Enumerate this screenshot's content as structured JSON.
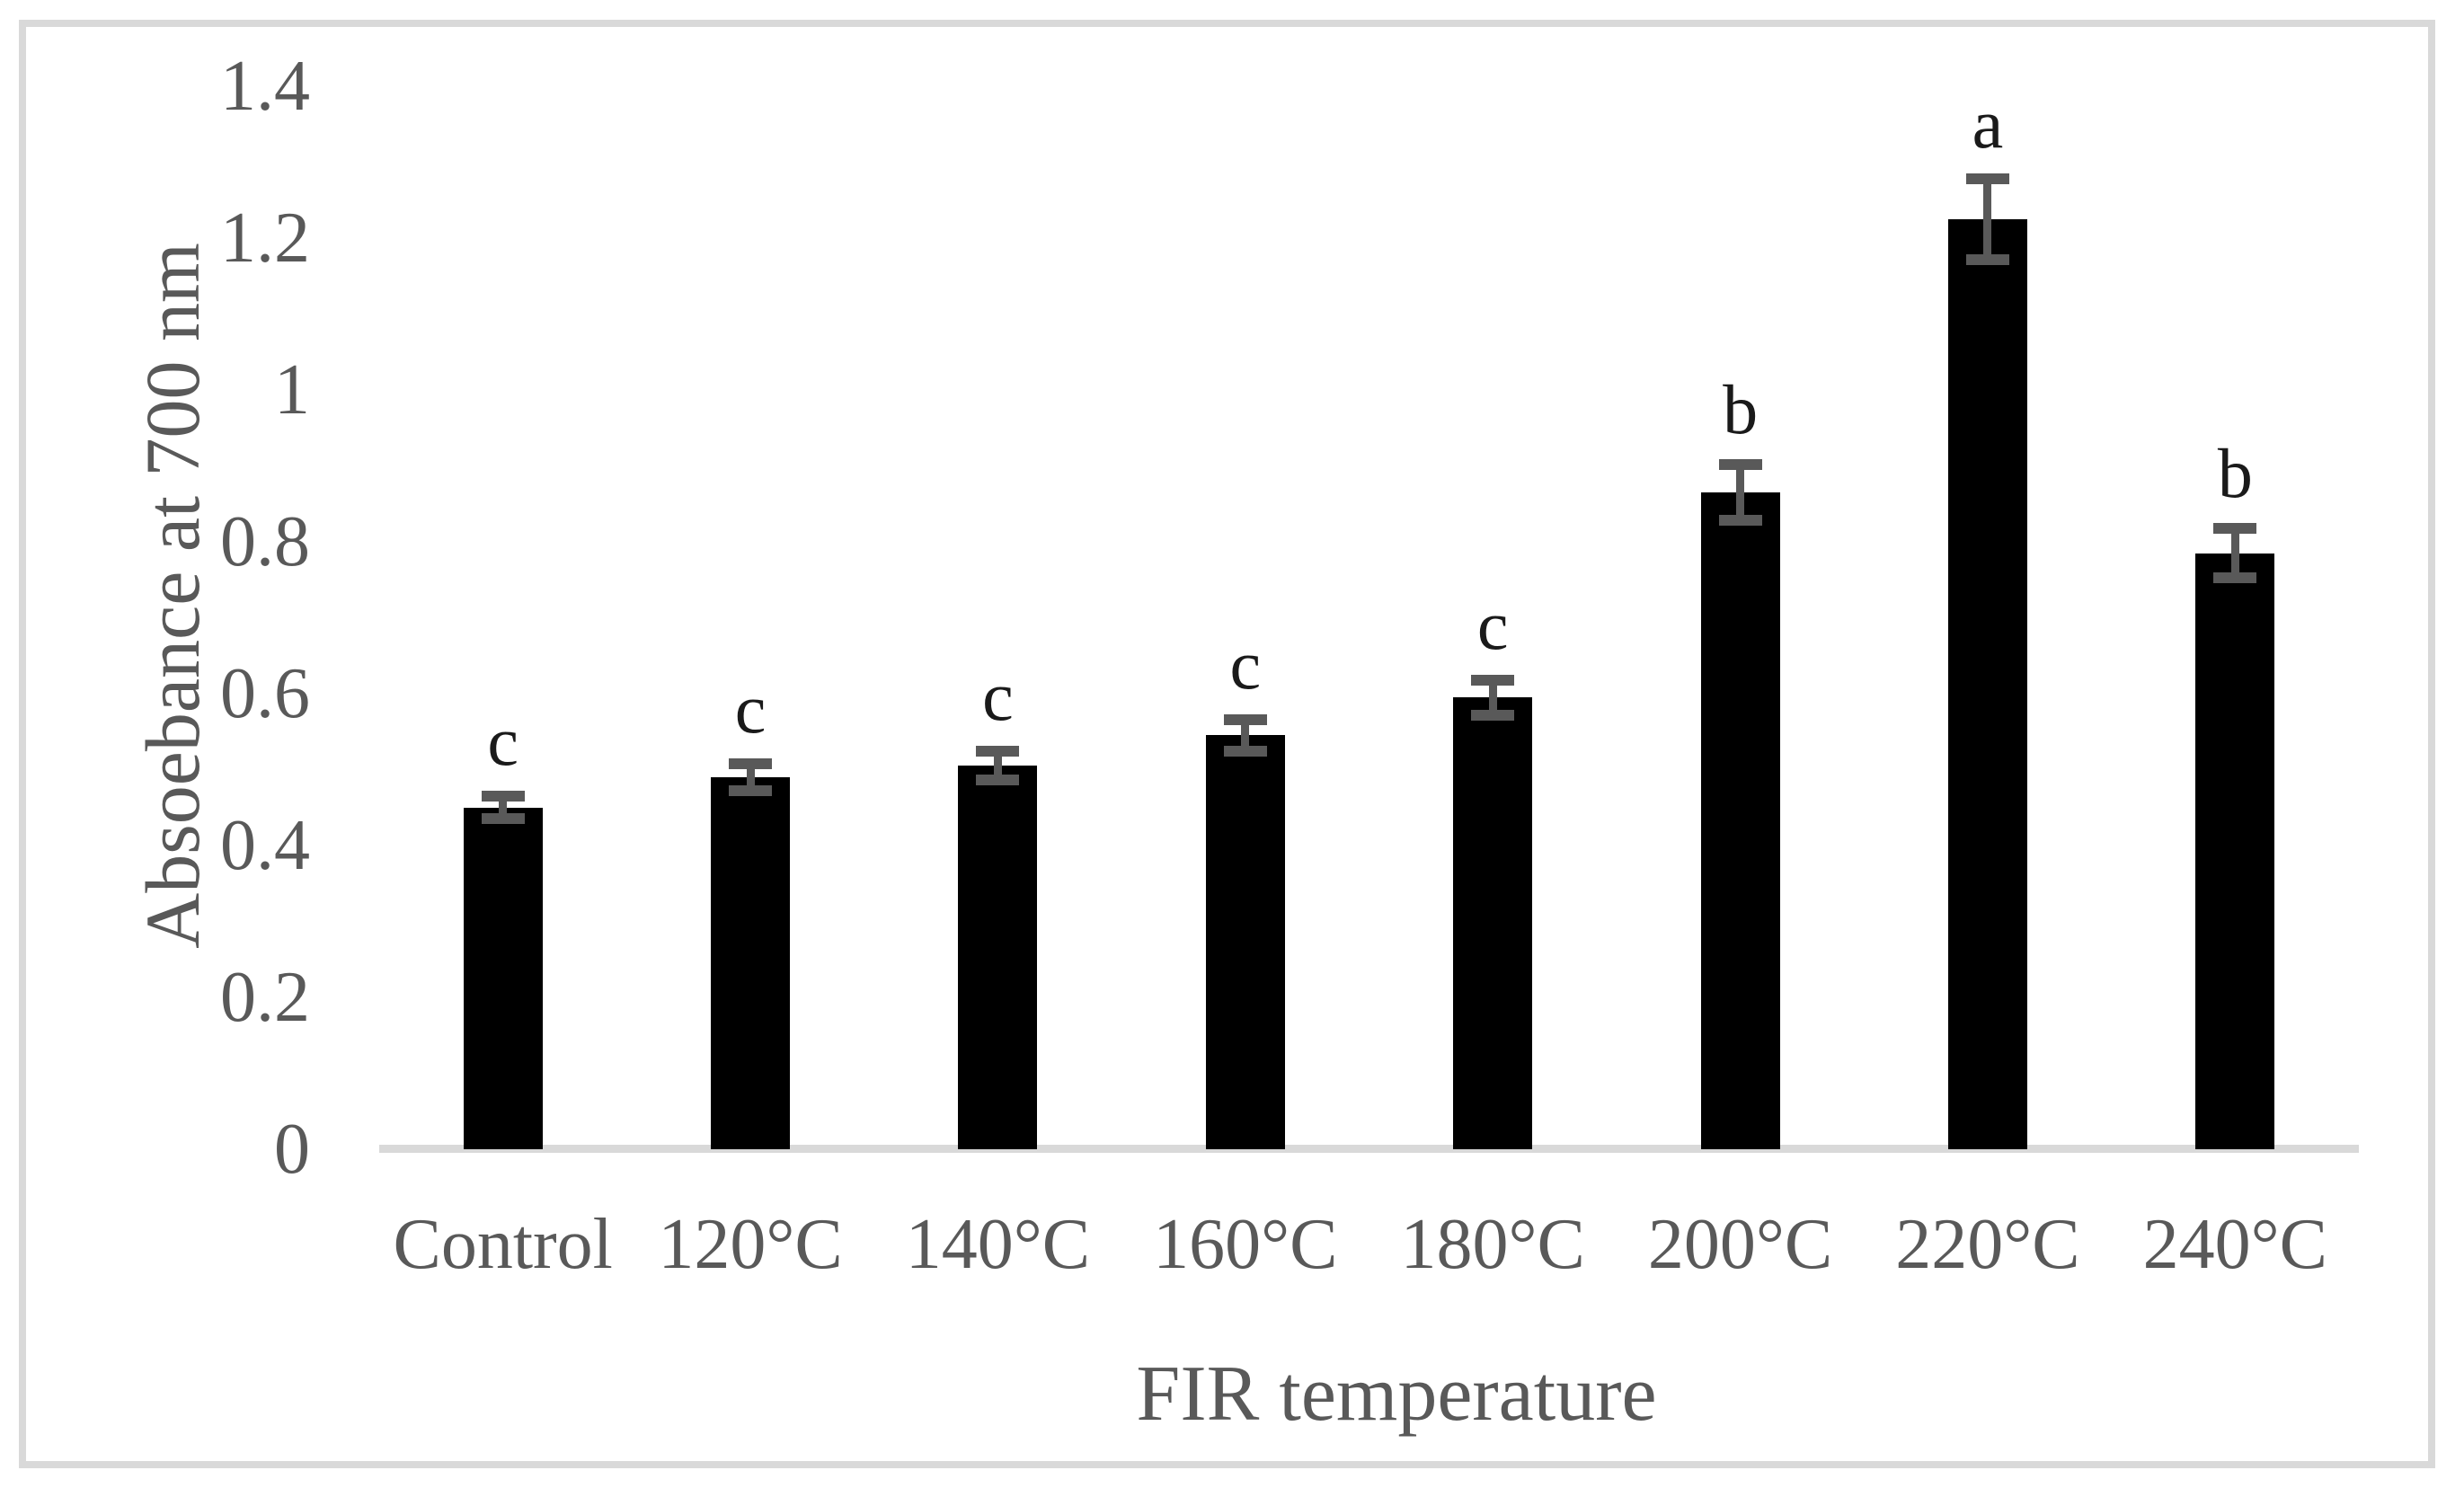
{
  "figure": {
    "y_axis_title": "Absoebance at 700 nm",
    "x_axis_title": "FIR temperature"
  },
  "chart_data": {
    "type": "bar",
    "title": "",
    "xlabel": "FIR temperature",
    "ylabel": "Absoebance at 700 nm",
    "categories": [
      "Control",
      "120°C",
      "140°C",
      "160°C",
      "180°C",
      "200°C",
      "220°C",
      "240°C"
    ],
    "values": [
      0.45,
      0.49,
      0.505,
      0.545,
      0.595,
      0.865,
      1.225,
      0.785
    ],
    "error_bars": [
      0.022,
      0.025,
      0.026,
      0.028,
      0.03,
      0.044,
      0.06,
      0.04
    ],
    "significance_letters": [
      "c",
      "c",
      "c",
      "c",
      "c",
      "b",
      "a",
      "b"
    ],
    "ylim": [
      0,
      1.4
    ],
    "yticks": [
      0,
      0.2,
      0.4,
      0.6,
      0.8,
      1,
      1.2,
      1.4
    ],
    "ytick_labels": [
      "0",
      "0.2",
      "0.4",
      "0.6",
      "0.8",
      "1",
      "1.2",
      "1.4"
    ],
    "grid": false,
    "legend": "none",
    "colors": {
      "bar": "#000000",
      "error_bar": "#595959",
      "axis_line": "#d9d9d9",
      "tick_text": "#595959",
      "letter_text": "#1a1a1a",
      "frame_border": "#d9d9d9",
      "background": "#ffffff"
    }
  }
}
